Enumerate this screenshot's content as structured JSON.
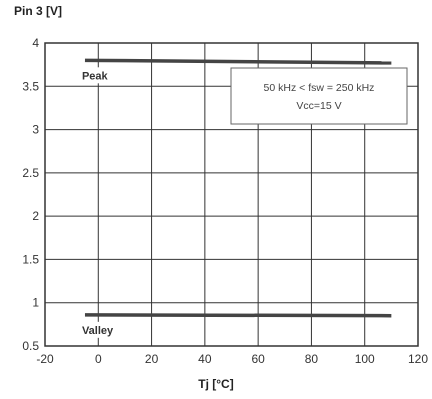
{
  "chart_data": {
    "type": "line",
    "ylabel": "Pin 3 [V]",
    "xlabel": "Tj [°C]",
    "xlim": [
      -20,
      120
    ],
    "ylim": [
      0.5,
      4
    ],
    "x_ticks": [
      -20,
      0,
      20,
      40,
      60,
      80,
      100,
      120
    ],
    "x_tick_labels": [
      "-20",
      "0",
      "20",
      "40",
      "60",
      "80",
      "100",
      "120"
    ],
    "y_ticks": [
      0.5,
      1,
      1.5,
      2,
      2.5,
      3,
      3.5,
      4
    ],
    "y_tick_labels": [
      "0.5",
      "1",
      "1.5",
      "2",
      "2.5",
      "3",
      "3.5",
      "4"
    ],
    "grid": true,
    "series": [
      {
        "name": "Peak",
        "x": [
          -5,
          110
        ],
        "y": [
          3.8,
          3.77
        ]
      },
      {
        "name": "Valley",
        "x": [
          -5,
          110
        ],
        "y": [
          0.86,
          0.85
        ]
      }
    ],
    "annotation": {
      "line1": "50 kHz < fsw = 250 kHz",
      "line2": "Vcc=15 V"
    },
    "line_color": "#444444"
  }
}
